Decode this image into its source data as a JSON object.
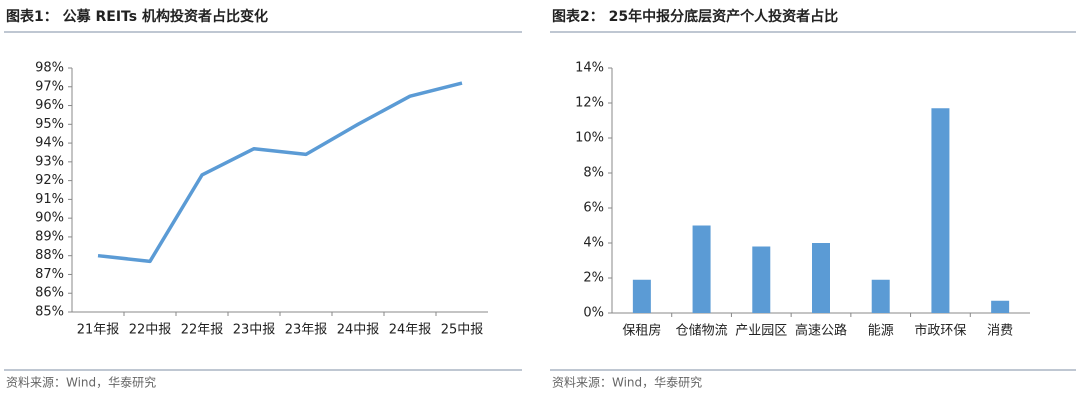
{
  "chart_data": [
    {
      "type": "line",
      "title": "图表1： 公募 REITs 机构投资者占比变化",
      "categories": [
        "21年报",
        "22中报",
        "22年报",
        "23中报",
        "23年报",
        "24中报",
        "24年报",
        "25中报"
      ],
      "values": [
        88.0,
        87.7,
        92.3,
        93.7,
        93.4,
        95.0,
        96.5,
        97.2
      ],
      "color": "#5b9bd5",
      "ylim": [
        85,
        98
      ],
      "yticks": [
        {
          "value": 85,
          "label": "85%"
        },
        {
          "value": 86,
          "label": "86%"
        },
        {
          "value": 87,
          "label": "87%"
        },
        {
          "value": 88,
          "label": "88%"
        },
        {
          "value": 89,
          "label": "89%"
        },
        {
          "value": 90,
          "label": "90%"
        },
        {
          "value": 91,
          "label": "91%"
        },
        {
          "value": 92,
          "label": "92%"
        },
        {
          "value": 93,
          "label": "93%"
        },
        {
          "value": 94,
          "label": "94%"
        },
        {
          "value": 95,
          "label": "95%"
        },
        {
          "value": 96,
          "label": "96%"
        },
        {
          "value": 97,
          "label": "97%"
        },
        {
          "value": 98,
          "label": "98%"
        }
      ],
      "grid": false,
      "source": "资料来源：Wind，华泰研究"
    },
    {
      "type": "bar",
      "title": "图表2： 25年中报分底层资产个人投资者占比",
      "categories": [
        "保租房",
        "仓储物流",
        "产业园区",
        "高速公路",
        "能源",
        "市政环保",
        "消费"
      ],
      "values": [
        1.9,
        5.0,
        3.8,
        4.0,
        1.9,
        11.7,
        0.7
      ],
      "color": "#5b9bd5",
      "ylim": [
        0,
        14
      ],
      "yticks": [
        {
          "value": 0,
          "label": "0%"
        },
        {
          "value": 2,
          "label": "2%"
        },
        {
          "value": 4,
          "label": "4%"
        },
        {
          "value": 6,
          "label": "6%"
        },
        {
          "value": 8,
          "label": "8%"
        },
        {
          "value": 10,
          "label": "10%"
        },
        {
          "value": 12,
          "label": "12%"
        },
        {
          "value": 14,
          "label": "14%"
        }
      ],
      "grid": false,
      "source": "资料来源：Wind，华泰研究"
    }
  ]
}
